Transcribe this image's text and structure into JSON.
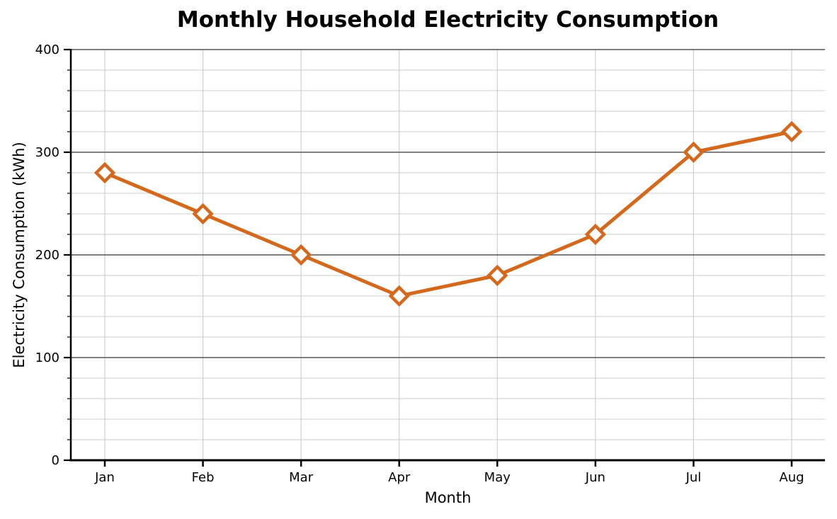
{
  "chart_data": {
    "type": "line",
    "title": "Monthly Household Electricity Consumption",
    "xlabel": "Month",
    "ylabel": "Electricity Consumption (kWh)",
    "categories": [
      "Jan",
      "Feb",
      "Mar",
      "Apr",
      "May",
      "Jun",
      "Jul",
      "Aug"
    ],
    "series": [
      {
        "name": "Electricity Consumption (kWh)",
        "values": [
          280,
          240,
          200,
          160,
          180,
          220,
          300,
          320
        ]
      }
    ],
    "ylim": [
      0,
      400
    ],
    "yticks_major": [
      0,
      100,
      200,
      300,
      400
    ],
    "ytick_minor_step": 20,
    "legend_position": "none",
    "grid": {
      "major_horizontal": true,
      "minor_horizontal": true,
      "vertical_at_categories": true
    },
    "style": {
      "line_color": "#D2691E",
      "line_width": 5,
      "marker": "diamond",
      "marker_fill": "#ffffff",
      "marker_edge_color": "#D2691E",
      "marker_size": 12,
      "marker_edge_width": 4.5,
      "grid_major_color": "#555555",
      "grid_minor_color": "#cccccc",
      "axis_color": "#000000",
      "text_color": "#000000",
      "background_color": "#ffffff"
    }
  }
}
